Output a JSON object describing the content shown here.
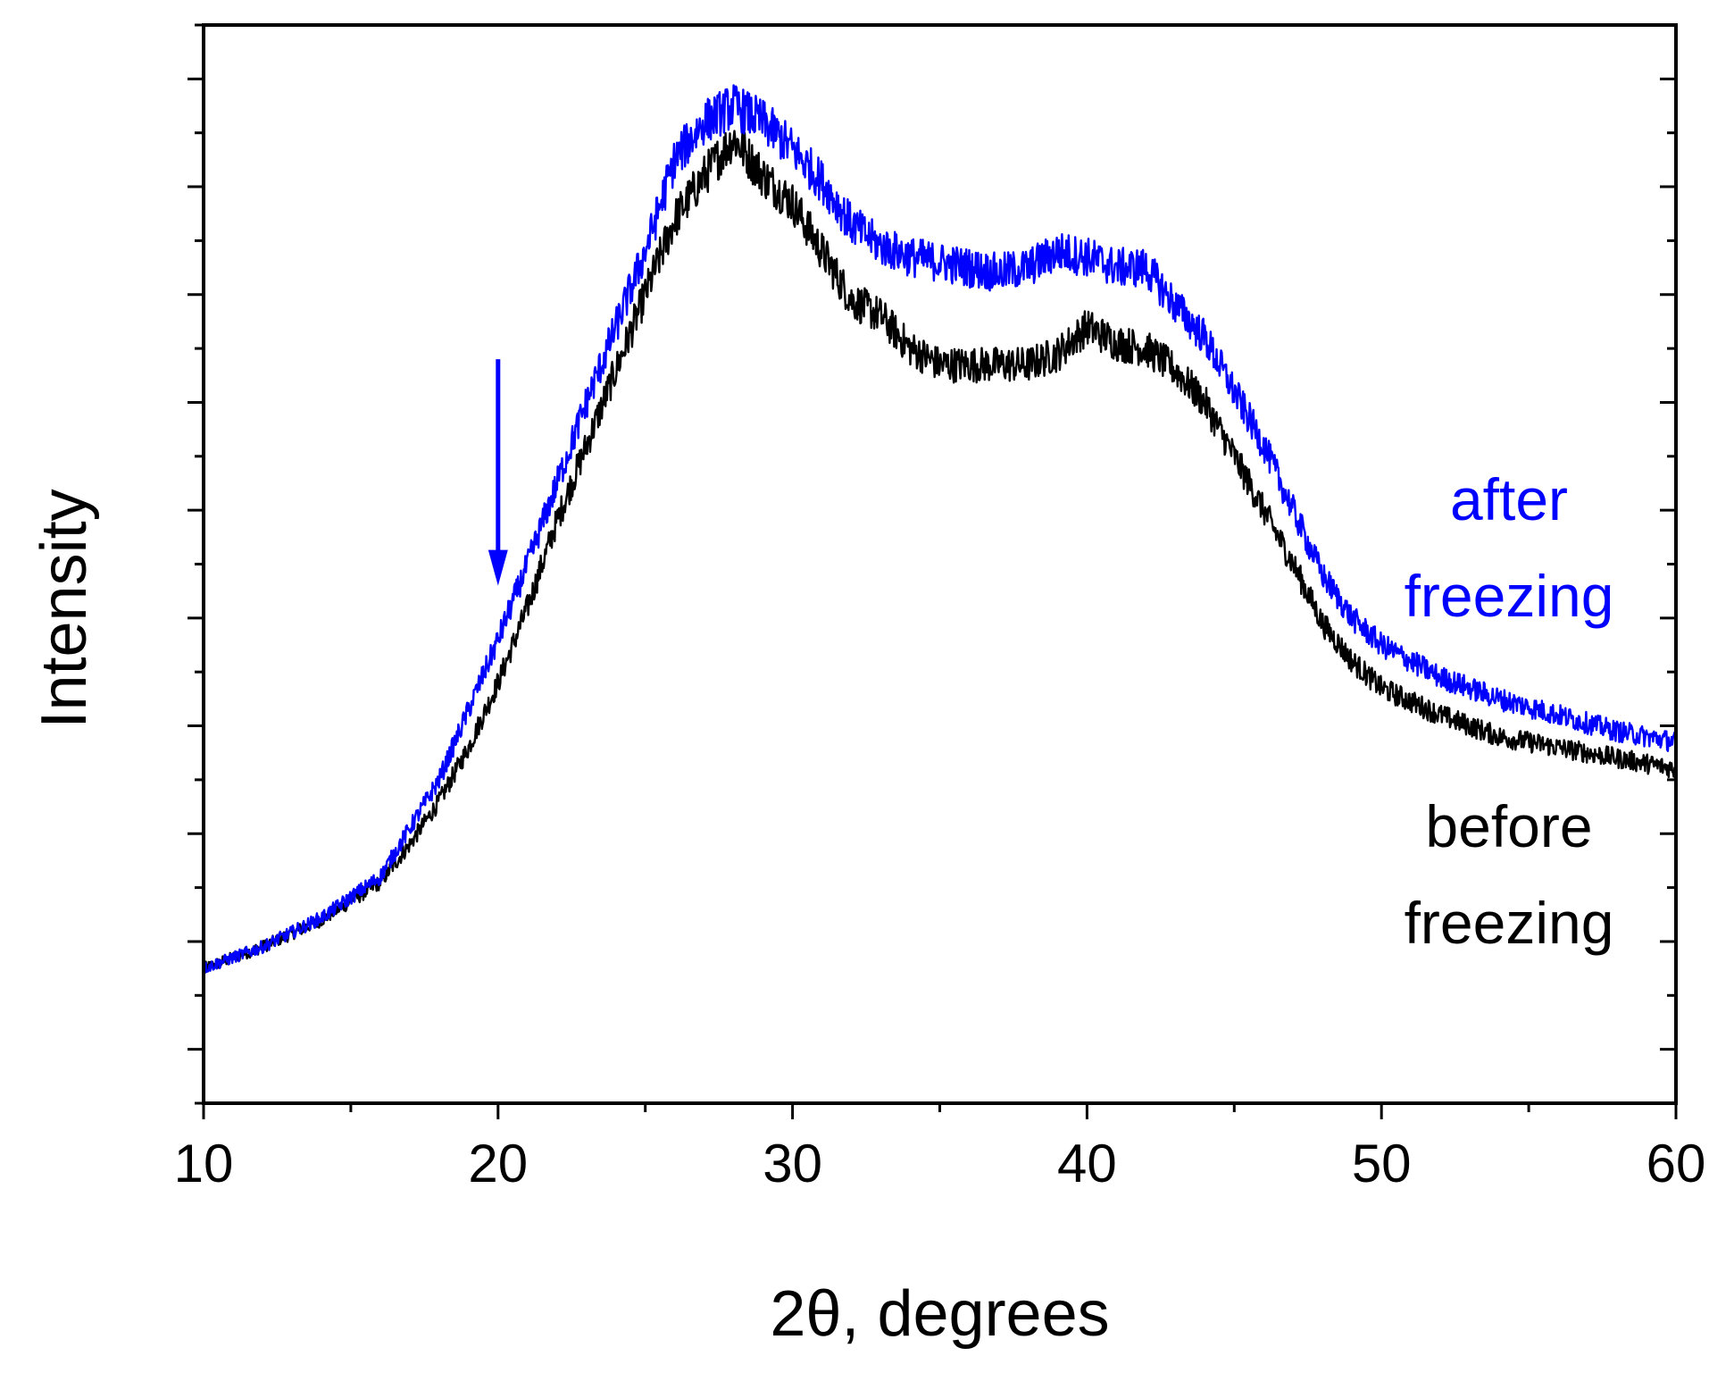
{
  "chart_data": {
    "type": "line",
    "title": "",
    "xlabel": "2θ, degrees",
    "ylabel": "Intensity",
    "xlim": [
      10,
      60
    ],
    "ylim": [
      0,
      10
    ],
    "x_ticks": [
      10,
      20,
      30,
      40,
      50,
      60
    ],
    "x_tick_labels": [
      "10",
      "20",
      "30",
      "40",
      "50",
      "60"
    ],
    "y_tick_labels_shown": false,
    "grid": false,
    "colors": {
      "after": "#0000ff",
      "before": "#000000",
      "axis": "#000000",
      "arrow": "#0000ff"
    },
    "series": [
      {
        "name": "before freezing",
        "label_line1": "before",
        "label_line2": "freezing",
        "color": "#000000",
        "x": [
          10,
          12,
          14,
          16,
          17,
          18,
          19,
          20,
          21,
          22,
          23,
          24,
          25,
          26,
          27,
          28,
          29,
          30,
          31,
          32,
          33,
          34,
          35,
          36,
          37,
          38,
          39,
          40,
          41,
          42,
          43,
          44,
          45,
          46,
          47,
          48,
          49,
          50,
          52,
          54,
          56,
          58,
          60
        ],
        "y": [
          1.25,
          1.45,
          1.7,
          2.05,
          2.4,
          2.8,
          3.3,
          3.9,
          4.6,
          5.4,
          6.1,
          6.8,
          7.5,
          8.2,
          8.6,
          8.95,
          8.6,
          8.35,
          7.9,
          7.45,
          7.3,
          7.0,
          6.85,
          6.85,
          6.85,
          6.85,
          6.95,
          7.2,
          7.05,
          7.0,
          6.8,
          6.5,
          6.0,
          5.5,
          5.0,
          4.45,
          4.1,
          3.85,
          3.6,
          3.4,
          3.3,
          3.2,
          3.1
        ]
      },
      {
        "name": "after freezing",
        "label_line1": "after",
        "label_line2": "freezing",
        "color": "#0000ff",
        "x": [
          10,
          12,
          14,
          16,
          17,
          18,
          19,
          20,
          21,
          22,
          23,
          24,
          25,
          26,
          27,
          28,
          29,
          30,
          31,
          32,
          33,
          34,
          35,
          36,
          37,
          38,
          39,
          40,
          41,
          42,
          43,
          44,
          45,
          46,
          47,
          48,
          49,
          50,
          52,
          54,
          56,
          58,
          60
        ],
        "y": [
          1.25,
          1.45,
          1.72,
          2.1,
          2.55,
          3.0,
          3.65,
          4.3,
          5.0,
          5.75,
          6.5,
          7.2,
          7.9,
          8.75,
          9.1,
          9.25,
          9.1,
          8.85,
          8.55,
          8.15,
          7.95,
          7.85,
          7.8,
          7.75,
          7.7,
          7.75,
          7.9,
          7.85,
          7.75,
          7.75,
          7.4,
          7.1,
          6.6,
          6.1,
          5.5,
          4.9,
          4.5,
          4.25,
          3.95,
          3.75,
          3.6,
          3.45,
          3.35
        ]
      }
    ],
    "annotations": [
      {
        "type": "arrow",
        "direction": "down",
        "x": 20,
        "y_start": 6.9,
        "y_end": 4.8,
        "color": "#0000ff"
      }
    ],
    "legend": "inline labels at right"
  }
}
